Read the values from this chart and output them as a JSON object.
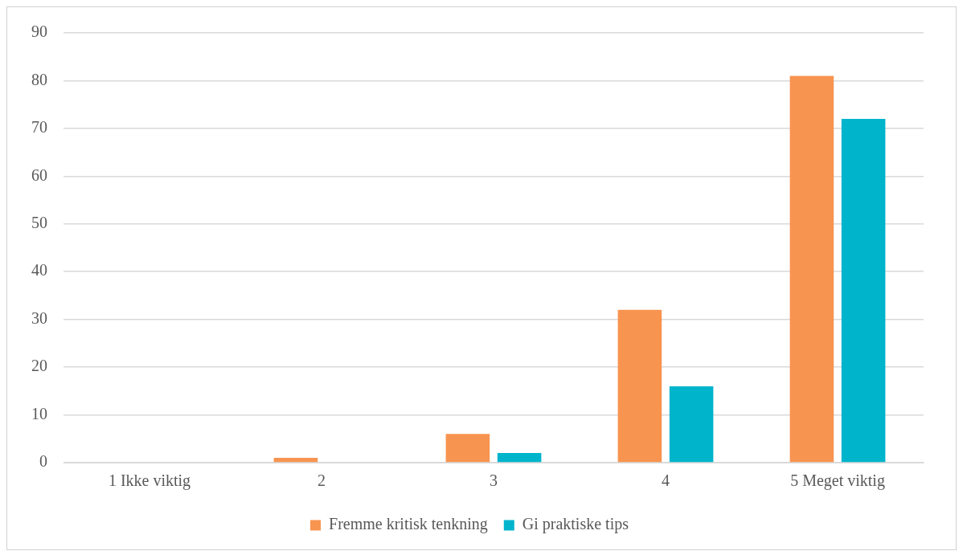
{
  "chart_data": {
    "type": "bar",
    "categories": [
      "1 Ikke viktig",
      "2",
      "3",
      "4",
      "5 Meget viktig"
    ],
    "series": [
      {
        "name": "Fremme kritisk tenkning",
        "color": "#f79450",
        "values": [
          0,
          1,
          6,
          32,
          81
        ]
      },
      {
        "name": "Gi praktiske tips",
        "color": "#00b4cc",
        "values": [
          0,
          0,
          2,
          16,
          72
        ]
      }
    ],
    "ylim": [
      0,
      90
    ],
    "yticks": [
      0,
      10,
      20,
      30,
      40,
      50,
      60,
      70,
      80,
      90
    ],
    "grid": "y",
    "legend": "bottom"
  }
}
